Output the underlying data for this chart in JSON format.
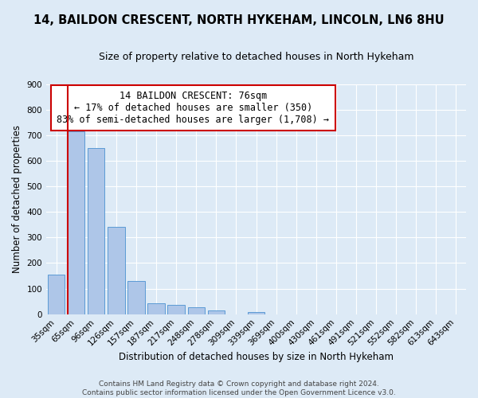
{
  "title": "14, BAILDON CRESCENT, NORTH HYKEHAM, LINCOLN, LN6 8HU",
  "subtitle": "Size of property relative to detached houses in North Hykeham",
  "xlabel": "Distribution of detached houses by size in North Hykeham",
  "ylabel": "Number of detached properties",
  "footer_line1": "Contains HM Land Registry data © Crown copyright and database right 2024.",
  "footer_line2": "Contains public sector information licensed under the Open Government Licence v3.0.",
  "annotation_line1": "14 BAILDON CRESCENT: 76sqm",
  "annotation_line2": "← 17% of detached houses are smaller (350)",
  "annotation_line3": "83% of semi-detached houses are larger (1,708) →",
  "bar_color": "#aec6e8",
  "bar_edge_color": "#5b9bd5",
  "bg_color": "#ddeaf6",
  "plot_bg_color": "#ddeaf6",
  "marker_line_color": "#cc0000",
  "annotation_box_color": "#cc0000",
  "grid_color": "#ffffff",
  "categories": [
    "35sqm",
    "65sqm",
    "96sqm",
    "126sqm",
    "157sqm",
    "187sqm",
    "217sqm",
    "248sqm",
    "278sqm",
    "309sqm",
    "339sqm",
    "369sqm",
    "400sqm",
    "430sqm",
    "461sqm",
    "491sqm",
    "521sqm",
    "552sqm",
    "582sqm",
    "613sqm",
    "643sqm"
  ],
  "values": [
    155,
    715,
    650,
    340,
    130,
    43,
    35,
    28,
    14,
    0,
    10,
    0,
    0,
    0,
    0,
    0,
    0,
    0,
    0,
    0,
    0
  ],
  "ylim": [
    0,
    900
  ],
  "yticks": [
    0,
    100,
    200,
    300,
    400,
    500,
    600,
    700,
    800,
    900
  ],
  "marker_bin_index": 1,
  "title_fontsize": 10.5,
  "subtitle_fontsize": 9,
  "axis_label_fontsize": 8.5,
  "tick_fontsize": 7.5,
  "annotation_fontsize": 8.5,
  "footer_fontsize": 6.5
}
